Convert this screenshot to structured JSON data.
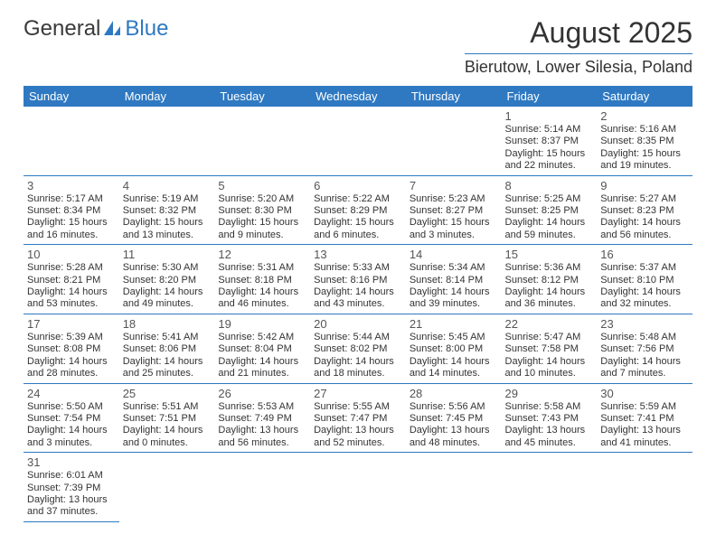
{
  "logo": {
    "text1": "General",
    "text2": "Blue",
    "color_dark": "#3a3a3a",
    "color_blue": "#2f79c2"
  },
  "title": "August 2025",
  "location": "Bierutow, Lower Silesia, Poland",
  "background_color": "#ffffff",
  "header_bg": "#2f79c2",
  "header_fg": "#ffffff",
  "divider_color": "#2f79c2",
  "text_color": "#333333",
  "fontsize_title": 32,
  "fontsize_location": 18,
  "fontsize_header": 13,
  "fontsize_daynum": 13,
  "fontsize_body": 11,
  "columns": [
    "Sunday",
    "Monday",
    "Tuesday",
    "Wednesday",
    "Thursday",
    "Friday",
    "Saturday"
  ],
  "weeks": [
    {
      "cells": [
        {
          "blank": true
        },
        {
          "blank": true
        },
        {
          "blank": true
        },
        {
          "blank": true
        },
        {
          "blank": true
        },
        {
          "day": "1",
          "sunrise": "Sunrise: 5:14 AM",
          "sunset": "Sunset: 8:37 PM",
          "daylight1": "Daylight: 15 hours",
          "daylight2": "and 22 minutes."
        },
        {
          "day": "2",
          "sunrise": "Sunrise: 5:16 AM",
          "sunset": "Sunset: 8:35 PM",
          "daylight1": "Daylight: 15 hours",
          "daylight2": "and 19 minutes."
        }
      ]
    },
    {
      "cells": [
        {
          "day": "3",
          "sunrise": "Sunrise: 5:17 AM",
          "sunset": "Sunset: 8:34 PM",
          "daylight1": "Daylight: 15 hours",
          "daylight2": "and 16 minutes."
        },
        {
          "day": "4",
          "sunrise": "Sunrise: 5:19 AM",
          "sunset": "Sunset: 8:32 PM",
          "daylight1": "Daylight: 15 hours",
          "daylight2": "and 13 minutes."
        },
        {
          "day": "5",
          "sunrise": "Sunrise: 5:20 AM",
          "sunset": "Sunset: 8:30 PM",
          "daylight1": "Daylight: 15 hours",
          "daylight2": "and 9 minutes."
        },
        {
          "day": "6",
          "sunrise": "Sunrise: 5:22 AM",
          "sunset": "Sunset: 8:29 PM",
          "daylight1": "Daylight: 15 hours",
          "daylight2": "and 6 minutes."
        },
        {
          "day": "7",
          "sunrise": "Sunrise: 5:23 AM",
          "sunset": "Sunset: 8:27 PM",
          "daylight1": "Daylight: 15 hours",
          "daylight2": "and 3 minutes."
        },
        {
          "day": "8",
          "sunrise": "Sunrise: 5:25 AM",
          "sunset": "Sunset: 8:25 PM",
          "daylight1": "Daylight: 14 hours",
          "daylight2": "and 59 minutes."
        },
        {
          "day": "9",
          "sunrise": "Sunrise: 5:27 AM",
          "sunset": "Sunset: 8:23 PM",
          "daylight1": "Daylight: 14 hours",
          "daylight2": "and 56 minutes."
        }
      ]
    },
    {
      "cells": [
        {
          "day": "10",
          "sunrise": "Sunrise: 5:28 AM",
          "sunset": "Sunset: 8:21 PM",
          "daylight1": "Daylight: 14 hours",
          "daylight2": "and 53 minutes."
        },
        {
          "day": "11",
          "sunrise": "Sunrise: 5:30 AM",
          "sunset": "Sunset: 8:20 PM",
          "daylight1": "Daylight: 14 hours",
          "daylight2": "and 49 minutes."
        },
        {
          "day": "12",
          "sunrise": "Sunrise: 5:31 AM",
          "sunset": "Sunset: 8:18 PM",
          "daylight1": "Daylight: 14 hours",
          "daylight2": "and 46 minutes."
        },
        {
          "day": "13",
          "sunrise": "Sunrise: 5:33 AM",
          "sunset": "Sunset: 8:16 PM",
          "daylight1": "Daylight: 14 hours",
          "daylight2": "and 43 minutes."
        },
        {
          "day": "14",
          "sunrise": "Sunrise: 5:34 AM",
          "sunset": "Sunset: 8:14 PM",
          "daylight1": "Daylight: 14 hours",
          "daylight2": "and 39 minutes."
        },
        {
          "day": "15",
          "sunrise": "Sunrise: 5:36 AM",
          "sunset": "Sunset: 8:12 PM",
          "daylight1": "Daylight: 14 hours",
          "daylight2": "and 36 minutes."
        },
        {
          "day": "16",
          "sunrise": "Sunrise: 5:37 AM",
          "sunset": "Sunset: 8:10 PM",
          "daylight1": "Daylight: 14 hours",
          "daylight2": "and 32 minutes."
        }
      ]
    },
    {
      "cells": [
        {
          "day": "17",
          "sunrise": "Sunrise: 5:39 AM",
          "sunset": "Sunset: 8:08 PM",
          "daylight1": "Daylight: 14 hours",
          "daylight2": "and 28 minutes."
        },
        {
          "day": "18",
          "sunrise": "Sunrise: 5:41 AM",
          "sunset": "Sunset: 8:06 PM",
          "daylight1": "Daylight: 14 hours",
          "daylight2": "and 25 minutes."
        },
        {
          "day": "19",
          "sunrise": "Sunrise: 5:42 AM",
          "sunset": "Sunset: 8:04 PM",
          "daylight1": "Daylight: 14 hours",
          "daylight2": "and 21 minutes."
        },
        {
          "day": "20",
          "sunrise": "Sunrise: 5:44 AM",
          "sunset": "Sunset: 8:02 PM",
          "daylight1": "Daylight: 14 hours",
          "daylight2": "and 18 minutes."
        },
        {
          "day": "21",
          "sunrise": "Sunrise: 5:45 AM",
          "sunset": "Sunset: 8:00 PM",
          "daylight1": "Daylight: 14 hours",
          "daylight2": "and 14 minutes."
        },
        {
          "day": "22",
          "sunrise": "Sunrise: 5:47 AM",
          "sunset": "Sunset: 7:58 PM",
          "daylight1": "Daylight: 14 hours",
          "daylight2": "and 10 minutes."
        },
        {
          "day": "23",
          "sunrise": "Sunrise: 5:48 AM",
          "sunset": "Sunset: 7:56 PM",
          "daylight1": "Daylight: 14 hours",
          "daylight2": "and 7 minutes."
        }
      ]
    },
    {
      "cells": [
        {
          "day": "24",
          "sunrise": "Sunrise: 5:50 AM",
          "sunset": "Sunset: 7:54 PM",
          "daylight1": "Daylight: 14 hours",
          "daylight2": "and 3 minutes."
        },
        {
          "day": "25",
          "sunrise": "Sunrise: 5:51 AM",
          "sunset": "Sunset: 7:51 PM",
          "daylight1": "Daylight: 14 hours",
          "daylight2": "and 0 minutes."
        },
        {
          "day": "26",
          "sunrise": "Sunrise: 5:53 AM",
          "sunset": "Sunset: 7:49 PM",
          "daylight1": "Daylight: 13 hours",
          "daylight2": "and 56 minutes."
        },
        {
          "day": "27",
          "sunrise": "Sunrise: 5:55 AM",
          "sunset": "Sunset: 7:47 PM",
          "daylight1": "Daylight: 13 hours",
          "daylight2": "and 52 minutes."
        },
        {
          "day": "28",
          "sunrise": "Sunrise: 5:56 AM",
          "sunset": "Sunset: 7:45 PM",
          "daylight1": "Daylight: 13 hours",
          "daylight2": "and 48 minutes."
        },
        {
          "day": "29",
          "sunrise": "Sunrise: 5:58 AM",
          "sunset": "Sunset: 7:43 PM",
          "daylight1": "Daylight: 13 hours",
          "daylight2": "and 45 minutes."
        },
        {
          "day": "30",
          "sunrise": "Sunrise: 5:59 AM",
          "sunset": "Sunset: 7:41 PM",
          "daylight1": "Daylight: 13 hours",
          "daylight2": "and 41 minutes."
        }
      ]
    },
    {
      "cells": [
        {
          "day": "31",
          "sunrise": "Sunrise: 6:01 AM",
          "sunset": "Sunset: 7:39 PM",
          "daylight1": "Daylight: 13 hours",
          "daylight2": "and 37 minutes."
        },
        {
          "blank": true,
          "filler": true
        },
        {
          "blank": true,
          "filler": true
        },
        {
          "blank": true,
          "filler": true
        },
        {
          "blank": true,
          "filler": true
        },
        {
          "blank": true,
          "filler": true
        },
        {
          "blank": true,
          "filler": true
        }
      ]
    }
  ]
}
